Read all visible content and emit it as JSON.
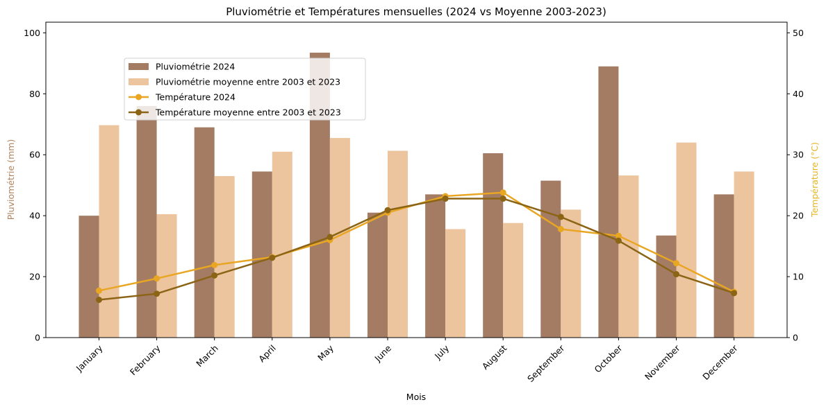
{
  "chart_data": {
    "type": "bar",
    "title": "Pluviométrie et Températures mensuelles (2024 vs Moyenne 2003-2023)",
    "xlabel": "Mois",
    "ylabel_left": "Pluviométrie (mm)",
    "ylabel_right": "Température (°C)",
    "ylim_left": [
      0,
      103.5
    ],
    "ylim_right": [
      0,
      51.75
    ],
    "yticks_left": [
      "0",
      "20",
      "40",
      "60",
      "80",
      "100"
    ],
    "yticks_right": [
      "0",
      "10",
      "20",
      "30",
      "40",
      "50"
    ],
    "grid": false,
    "legend_position": "upper-left",
    "categories": [
      "January",
      "February",
      "March",
      "April",
      "May",
      "June",
      "July",
      "August",
      "September",
      "October",
      "November",
      "December"
    ],
    "bar_series": [
      {
        "name": "Pluviométrie 2024",
        "color": "#a47c63",
        "values": [
          40,
          76,
          69,
          54.5,
          93.5,
          41,
          47,
          60.5,
          51.5,
          89,
          33.5,
          47
        ]
      },
      {
        "name": "Pluviométrie moyenne entre 2003 et 2023",
        "color": "#ecc59f",
        "values": [
          69.7,
          40.5,
          53,
          61,
          65.5,
          61.3,
          35.6,
          37.6,
          42,
          53.2,
          64,
          54.5
        ]
      }
    ],
    "line_series": [
      {
        "name": "Température 2024",
        "color": "#e8a623",
        "values": [
          7.7,
          9.7,
          11.9,
          13.2,
          16,
          20.5,
          23.2,
          23.8,
          17.8,
          16.7,
          12.2,
          7.5
        ]
      },
      {
        "name": "Température moyenne entre 2003 et 2023",
        "color": "#8b6415",
        "values": [
          6.2,
          7.2,
          10.2,
          13.1,
          16.5,
          20.9,
          22.8,
          22.8,
          19.8,
          15.9,
          10.4,
          7.3
        ]
      }
    ]
  }
}
